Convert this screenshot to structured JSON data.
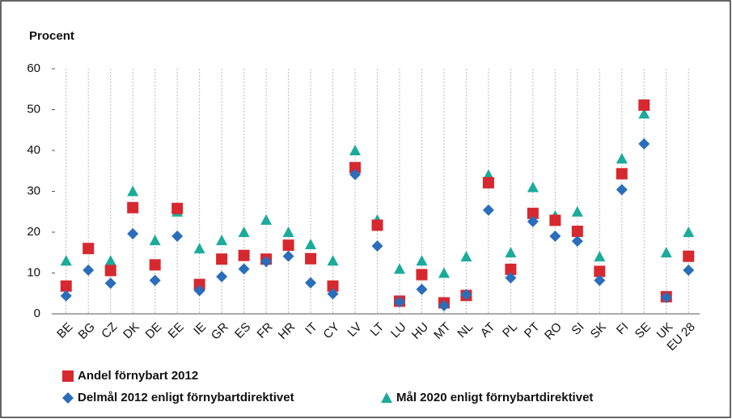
{
  "chart_data": {
    "type": "point",
    "title": "Procent",
    "categories": [
      "BE",
      "BG",
      "CZ",
      "DK",
      "DE",
      "EE",
      "IE",
      "GR",
      "ES",
      "FR",
      "HR",
      "IT",
      "CY",
      "LV",
      "LT",
      "LU",
      "HU",
      "MT",
      "NL",
      "AT",
      "PL",
      "PT",
      "RO",
      "SI",
      "SK",
      "FI",
      "SE",
      "UK",
      "EU 28"
    ],
    "series": [
      {
        "name": "Mål 2020 enligt förnybartdirektivet",
        "color": "#1aab9b",
        "marker": "triangle",
        "values": [
          13,
          16,
          13,
          30,
          18,
          25,
          16,
          18,
          20,
          23,
          20,
          17,
          13,
          40,
          23,
          11,
          13,
          10,
          14,
          34,
          15,
          31,
          24,
          25,
          14,
          38,
          49,
          15,
          20
        ]
      },
      {
        "name": "Andel förnybart 2012",
        "color": "#d7282f",
        "marker": "square",
        "values": [
          6.8,
          16,
          10.6,
          26,
          12,
          25.8,
          7.2,
          13.4,
          14.3,
          13.4,
          16.8,
          13.5,
          6.8,
          35.8,
          21.7,
          3.1,
          9.6,
          2.7,
          4.5,
          32.1,
          10.9,
          24.6,
          22.9,
          20.2,
          10.4,
          34.3,
          51.1,
          4.2,
          14.1
        ]
      },
      {
        "name": "Delmål 2012 enligt förnybartdirektivet",
        "color": "#2a6ebb",
        "marker": "diamond",
        "values": [
          4.4,
          10.7,
          7.5,
          19.6,
          8.2,
          19,
          5.7,
          9.1,
          11,
          12.8,
          14.1,
          7.6,
          4.9,
          34.1,
          16.6,
          2.9,
          6,
          2,
          4.7,
          25.4,
          8.8,
          22.6,
          19,
          17.8,
          8.2,
          30.4,
          41.6,
          4,
          10.7
        ]
      }
    ],
    "ylim": [
      0,
      60
    ],
    "yticks": [
      0,
      10,
      20,
      30,
      40,
      50,
      60
    ]
  }
}
